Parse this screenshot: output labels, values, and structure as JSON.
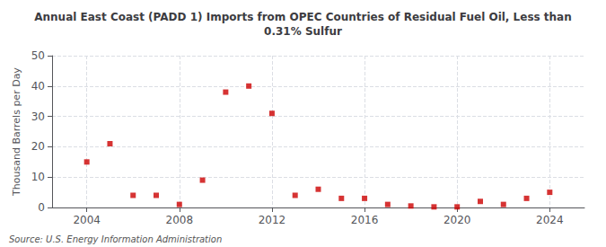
{
  "chart_data": {
    "type": "scatter",
    "title": "Annual East Coast (PADD 1) Imports from OPEC Countries of Residual Fuel Oil, Less than\n0.31% Sulfur",
    "ylabel": "Thousand Barrels per Day",
    "annotations": [
      "Source: U.S. Energy Information Administration"
    ],
    "x": [
      2004,
      2005,
      2006,
      2007,
      2008,
      2009,
      2010,
      2011,
      2012,
      2013,
      2014,
      2015,
      2016,
      2017,
      2018,
      2019,
      2020,
      2021,
      2022,
      2023,
      2024
    ],
    "values": [
      15,
      21,
      4,
      4,
      1,
      9,
      38,
      40,
      31,
      4,
      6,
      3,
      3,
      1,
      0.5,
      0.2,
      0.2,
      2,
      1,
      3,
      5
    ],
    "color": "#cc0000",
    "marker": "square",
    "xlim": [
      2002.5,
      2025.5
    ],
    "xticks": [
      2004,
      2008,
      2012,
      2016,
      2020,
      2024
    ],
    "ylim": [
      0,
      50
    ],
    "yticks": [
      0,
      10,
      20,
      30,
      40,
      50
    ],
    "grid": true
  }
}
